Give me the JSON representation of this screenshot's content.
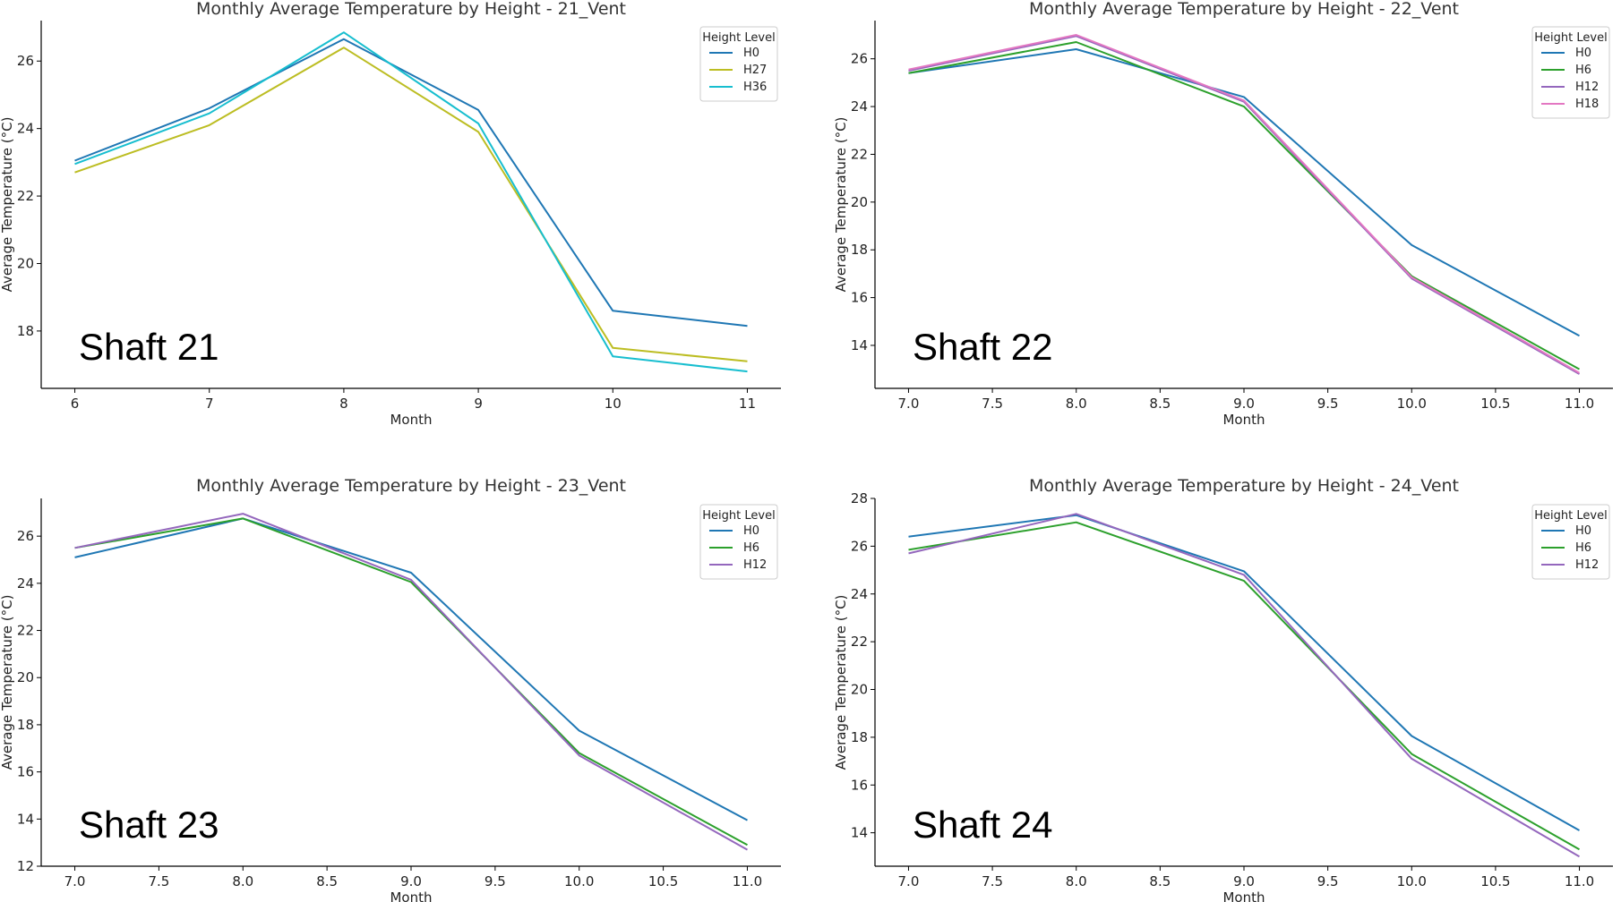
{
  "chart_data": [
    {
      "type": "line",
      "title": "Monthly Average Temperature by Height - 21_Vent",
      "xlabel": "Month",
      "ylabel": "Average Temperature (°C)",
      "annotation": "Shaft 21",
      "legend_title": "Height Level",
      "legend_position": "top-right",
      "x": [
        6,
        7,
        8,
        9,
        10,
        11
      ],
      "xticks": [
        "6",
        "7",
        "8",
        "9",
        "10",
        "11"
      ],
      "xlim": [
        5.75,
        11.25
      ],
      "yticks": [
        "18",
        "20",
        "22",
        "24",
        "26"
      ],
      "ylim": [
        16.3,
        27.2
      ],
      "grid": false,
      "series": [
        {
          "name": "H0",
          "color": "#1f77b4",
          "values": [
            23.05,
            24.6,
            26.65,
            24.55,
            18.6,
            18.15
          ]
        },
        {
          "name": "H27",
          "color": "#bcbd22",
          "values": [
            22.7,
            24.1,
            26.4,
            23.9,
            17.5,
            17.1
          ]
        },
        {
          "name": "H36",
          "color": "#17becf",
          "values": [
            22.95,
            24.45,
            26.85,
            24.15,
            17.25,
            16.8
          ]
        }
      ]
    },
    {
      "type": "line",
      "title": "Monthly Average Temperature by Height - 22_Vent",
      "xlabel": "Month",
      "ylabel": "Average Temperature (°C)",
      "annotation": "Shaft 22",
      "legend_title": "Height Level",
      "legend_position": "top-right",
      "x": [
        7,
        8,
        9,
        10,
        11
      ],
      "xticks": [
        "7.0",
        "7.5",
        "8.0",
        "8.5",
        "9.0",
        "9.5",
        "10.0",
        "10.5",
        "11.0"
      ],
      "xlim": [
        6.8,
        11.2
      ],
      "yticks": [
        "14",
        "16",
        "18",
        "20",
        "22",
        "24",
        "26"
      ],
      "ylim": [
        12.2,
        27.6
      ],
      "grid": false,
      "series": [
        {
          "name": "H0",
          "color": "#1f77b4",
          "values": [
            25.4,
            26.4,
            24.4,
            18.2,
            14.4
          ]
        },
        {
          "name": "H6",
          "color": "#2ca02c",
          "values": [
            25.4,
            26.7,
            24.0,
            16.9,
            13.0
          ]
        },
        {
          "name": "H12",
          "color": "#9467bd",
          "values": [
            25.5,
            26.95,
            24.2,
            16.8,
            12.8
          ]
        },
        {
          "name": "H18",
          "color": "#e377c2",
          "values": [
            25.55,
            27.0,
            24.25,
            16.85,
            12.85
          ]
        }
      ]
    },
    {
      "type": "line",
      "title": "Monthly Average Temperature by Height - 23_Vent",
      "xlabel": "Month",
      "ylabel": "Average Temperature (°C)",
      "annotation": "Shaft 23",
      "legend_title": "Height Level",
      "legend_position": "top-right",
      "x": [
        7,
        8,
        9,
        10,
        11
      ],
      "xticks": [
        "7.0",
        "7.5",
        "8.0",
        "8.5",
        "9.0",
        "9.5",
        "10.0",
        "10.5",
        "11.0"
      ],
      "xlim": [
        6.8,
        11.2
      ],
      "yticks": [
        "12",
        "14",
        "16",
        "18",
        "20",
        "22",
        "24",
        "26"
      ],
      "ylim": [
        12.0,
        27.6
      ],
      "grid": false,
      "series": [
        {
          "name": "H0",
          "color": "#1f77b4",
          "values": [
            25.1,
            26.75,
            24.45,
            17.75,
            13.95
          ]
        },
        {
          "name": "H6",
          "color": "#2ca02c",
          "values": [
            25.5,
            26.75,
            24.05,
            16.8,
            12.9
          ]
        },
        {
          "name": "H12",
          "color": "#9467bd",
          "values": [
            25.5,
            26.95,
            24.15,
            16.7,
            12.7
          ]
        }
      ]
    },
    {
      "type": "line",
      "title": "Monthly Average Temperature by Height - 24_Vent",
      "xlabel": "Month",
      "ylabel": "Average Temperature (°C)",
      "annotation": "Shaft 24",
      "legend_title": "Height Level",
      "legend_position": "top-right",
      "x": [
        7,
        8,
        9,
        10,
        11
      ],
      "xticks": [
        "7.0",
        "7.5",
        "8.0",
        "8.5",
        "9.0",
        "9.5",
        "10.0",
        "10.5",
        "11.0"
      ],
      "xlim": [
        6.8,
        11.2
      ],
      "yticks": [
        "14",
        "16",
        "18",
        "20",
        "22",
        "24",
        "26",
        "28"
      ],
      "ylim": [
        12.6,
        28.0
      ],
      "grid": false,
      "series": [
        {
          "name": "H0",
          "color": "#1f77b4",
          "values": [
            26.4,
            27.3,
            24.95,
            18.05,
            14.1
          ]
        },
        {
          "name": "H6",
          "color": "#2ca02c",
          "values": [
            25.85,
            27.0,
            24.55,
            17.3,
            13.3
          ]
        },
        {
          "name": "H12",
          "color": "#9467bd",
          "values": [
            25.7,
            27.35,
            24.8,
            17.1,
            13.0
          ]
        }
      ]
    }
  ]
}
